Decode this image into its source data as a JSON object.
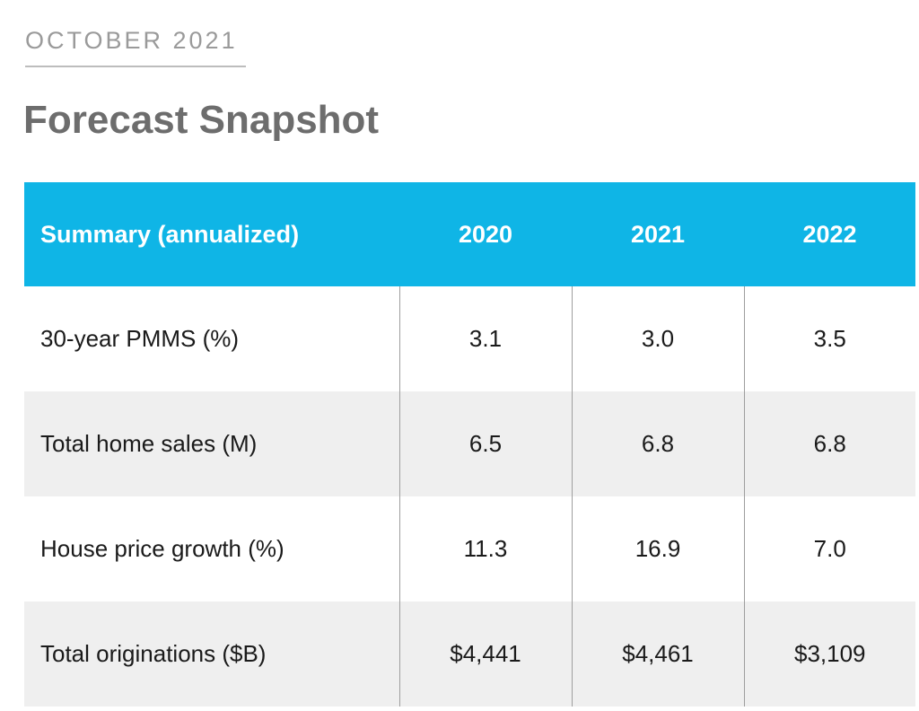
{
  "header": {
    "eyebrow": "OCTOBER 2021",
    "title": "Forecast Snapshot"
  },
  "table": {
    "columns": [
      "Summary (annualized)",
      "2020",
      "2021",
      "2022"
    ],
    "rows": [
      {
        "label": "30-year PMMS (%)",
        "values": [
          "3.1",
          "3.0",
          "3.5"
        ]
      },
      {
        "label": "Total home sales (M)",
        "values": [
          "6.5",
          "6.8",
          "6.8"
        ]
      },
      {
        "label": "House price growth (%)",
        "values": [
          "11.3",
          "16.9",
          "7.0"
        ]
      },
      {
        "label": "Total originations ($B)",
        "values": [
          "$4,441",
          "$4,461",
          "$3,109"
        ]
      }
    ]
  },
  "colors": {
    "header_bg": "#0fb5e6",
    "alt_row_bg": "#efefef",
    "title_color": "#6d6d6d",
    "eyebrow_color": "#9a9a9a"
  }
}
